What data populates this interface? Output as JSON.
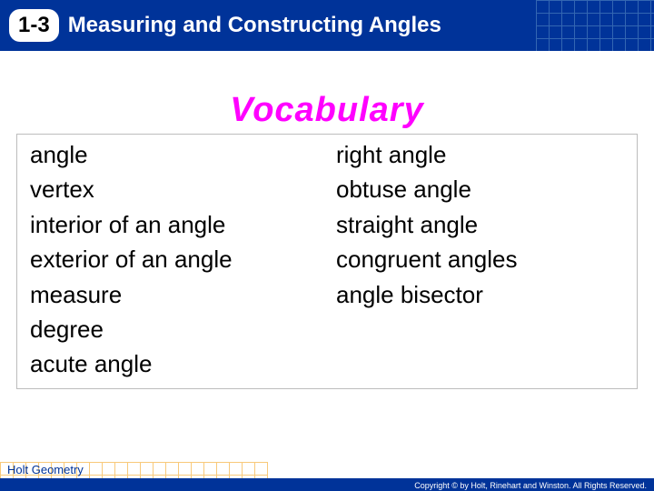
{
  "header": {
    "section_number": "1-3",
    "title": "Measuring and Constructing Angles",
    "bg_color": "#003399",
    "grid_color": "#6699cc"
  },
  "section_heading": {
    "text": "Vocabulary",
    "color": "#ff00ff",
    "font_style": "italic",
    "font_weight": 900,
    "font_size": 38
  },
  "vocab": {
    "border_color": "#bdbdbd",
    "item_color": "#000000",
    "item_font_size": 26,
    "left_column": [
      "angle",
      "vertex",
      "interior of an angle",
      "exterior of an angle",
      "measure",
      "degree",
      "acute angle"
    ],
    "right_column": [
      "right angle",
      "obtuse angle",
      "straight angle",
      "congruent angles",
      "angle bisector"
    ]
  },
  "footer": {
    "brand": "Holt Geometry",
    "copyright": "Copyright © by Holt, Rinehart and Winston. All Rights Reserved.",
    "bar_color": "#003399",
    "grid_color": "#f5a623"
  }
}
